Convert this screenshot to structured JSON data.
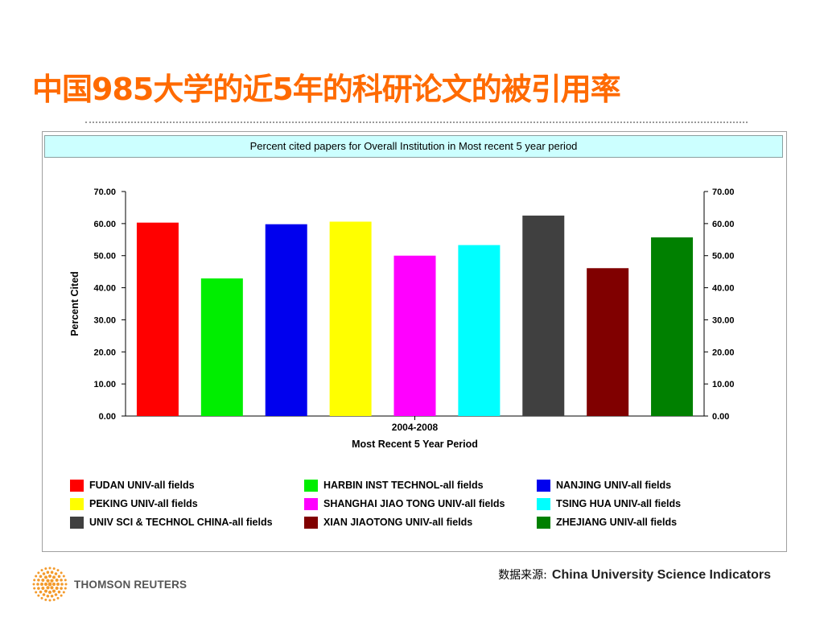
{
  "slide": {
    "title": "中国985大学的近5年的科研论文的被引用率",
    "source_label": "数据来源:",
    "source_value": "China University Science Indicators",
    "brand_name": "THOMSON REUTERS"
  },
  "colors": {
    "title": "#ff6a00",
    "header_bg": "#ccffff",
    "brand_orange": "#f39a2b"
  },
  "chart_data": {
    "type": "bar",
    "title": "Percent cited papers for Overall Institution in Most recent 5 year period",
    "category_label": "2004-2008",
    "xlabel": "Most Recent 5 Year Period",
    "ylabel": "Percent Cited",
    "ylim": [
      0,
      70
    ],
    "yticks": [
      "0.00",
      "10.00",
      "20.00",
      "30.00",
      "40.00",
      "50.00",
      "60.00",
      "70.00"
    ],
    "grid": false,
    "legend_position": "bottom",
    "series": [
      {
        "name": "FUDAN UNIV-all fields",
        "value": 60.3,
        "color": "#ff0000"
      },
      {
        "name": "HARBIN INST TECHNOL-all fields",
        "value": 42.9,
        "color": "#00ee00"
      },
      {
        "name": "NANJING UNIV-all fields",
        "value": 59.8,
        "color": "#0000ee"
      },
      {
        "name": "PEKING UNIV-all fields",
        "value": 60.6,
        "color": "#ffff00"
      },
      {
        "name": "SHANGHAI JIAO TONG UNIV-all fields",
        "value": 50.0,
        "color": "#ff00ff"
      },
      {
        "name": "TSING HUA UNIV-all fields",
        "value": 53.3,
        "color": "#00ffff"
      },
      {
        "name": "UNIV SCI & TECHNOL CHINA-all fields",
        "value": 62.5,
        "color": "#404040"
      },
      {
        "name": "XIAN JIAOTONG UNIV-all fields",
        "value": 46.1,
        "color": "#800000"
      },
      {
        "name": "ZHEJIANG UNIV-all fields",
        "value": 55.7,
        "color": "#008000"
      }
    ],
    "legend_order": [
      0,
      3,
      6,
      1,
      4,
      7,
      2,
      5,
      8
    ]
  }
}
